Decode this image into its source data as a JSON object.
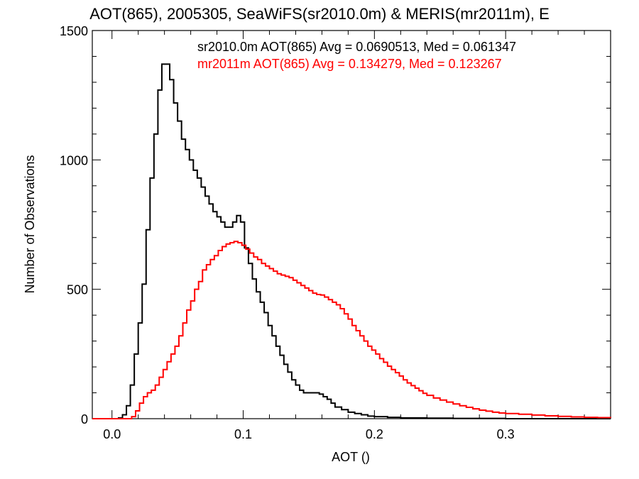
{
  "chart_data": {
    "type": "line",
    "title": "AOT(865), 2005305, SeaWiFS(sr2010.0m) & MERIS(mr2011m), E",
    "xlabel": "AOT ()",
    "ylabel": "Number of Observations",
    "xlim": [
      -0.015,
      0.38
    ],
    "ylim": [
      0,
      1500
    ],
    "x_ticks": [
      "0.0",
      "0.1",
      "0.2",
      "0.3"
    ],
    "y_ticks": [
      "0",
      "500",
      "1000",
      "1500"
    ],
    "legend_placement": "top",
    "series": [
      {
        "name": "sr2010.0m AOT(865) Avg = 0.0690513, Med = 0.061347",
        "color": "#000000",
        "points": [
          [
            -0.015,
            0
          ],
          [
            0.0,
            0
          ],
          [
            0.005,
            3
          ],
          [
            0.008,
            15
          ],
          [
            0.011,
            50
          ],
          [
            0.014,
            130
          ],
          [
            0.017,
            250
          ],
          [
            0.02,
            370
          ],
          [
            0.023,
            520
          ],
          [
            0.026,
            730
          ],
          [
            0.029,
            930
          ],
          [
            0.032,
            1100
          ],
          [
            0.035,
            1270
          ],
          [
            0.038,
            1370
          ],
          [
            0.041,
            1370
          ],
          [
            0.044,
            1310
          ],
          [
            0.047,
            1220
          ],
          [
            0.05,
            1150
          ],
          [
            0.053,
            1080
          ],
          [
            0.056,
            1040
          ],
          [
            0.059,
            1000
          ],
          [
            0.062,
            960
          ],
          [
            0.065,
            930
          ],
          [
            0.068,
            895
          ],
          [
            0.071,
            860
          ],
          [
            0.074,
            830
          ],
          [
            0.077,
            800
          ],
          [
            0.08,
            780
          ],
          [
            0.083,
            760
          ],
          [
            0.086,
            740
          ],
          [
            0.089,
            740
          ],
          [
            0.092,
            760
          ],
          [
            0.095,
            785
          ],
          [
            0.098,
            760
          ],
          [
            0.101,
            660
          ],
          [
            0.104,
            600
          ],
          [
            0.107,
            540
          ],
          [
            0.11,
            490
          ],
          [
            0.113,
            450
          ],
          [
            0.116,
            410
          ],
          [
            0.119,
            360
          ],
          [
            0.122,
            320
          ],
          [
            0.125,
            280
          ],
          [
            0.128,
            245
          ],
          [
            0.131,
            210
          ],
          [
            0.134,
            180
          ],
          [
            0.137,
            150
          ],
          [
            0.14,
            130
          ],
          [
            0.143,
            110
          ],
          [
            0.146,
            100
          ],
          [
            0.149,
            100
          ],
          [
            0.152,
            100
          ],
          [
            0.155,
            100
          ],
          [
            0.158,
            95
          ],
          [
            0.161,
            85
          ],
          [
            0.164,
            75
          ],
          [
            0.167,
            60
          ],
          [
            0.17,
            45
          ],
          [
            0.175,
            35
          ],
          [
            0.18,
            25
          ],
          [
            0.185,
            20
          ],
          [
            0.19,
            15
          ],
          [
            0.195,
            10
          ],
          [
            0.2,
            8
          ],
          [
            0.21,
            5
          ],
          [
            0.22,
            3
          ],
          [
            0.24,
            2
          ],
          [
            0.26,
            1
          ],
          [
            0.3,
            0
          ],
          [
            0.38,
            0
          ]
        ]
      },
      {
        "name": "mr2011m AOT(865) Avg = 0.134279, Med = 0.123267",
        "color": "#ff0000",
        "points": [
          [
            -0.015,
            0
          ],
          [
            0.01,
            0
          ],
          [
            0.015,
            8
          ],
          [
            0.018,
            30
          ],
          [
            0.021,
            60
          ],
          [
            0.024,
            85
          ],
          [
            0.027,
            100
          ],
          [
            0.03,
            110
          ],
          [
            0.033,
            130
          ],
          [
            0.036,
            160
          ],
          [
            0.039,
            190
          ],
          [
            0.042,
            220
          ],
          [
            0.045,
            250
          ],
          [
            0.048,
            280
          ],
          [
            0.051,
            320
          ],
          [
            0.054,
            370
          ],
          [
            0.057,
            420
          ],
          [
            0.06,
            455
          ],
          [
            0.063,
            500
          ],
          [
            0.066,
            530
          ],
          [
            0.069,
            575
          ],
          [
            0.072,
            595
          ],
          [
            0.075,
            615
          ],
          [
            0.078,
            630
          ],
          [
            0.081,
            650
          ],
          [
            0.084,
            665
          ],
          [
            0.087,
            675
          ],
          [
            0.09,
            680
          ],
          [
            0.093,
            685
          ],
          [
            0.096,
            680
          ],
          [
            0.099,
            670
          ],
          [
            0.102,
            655
          ],
          [
            0.105,
            640
          ],
          [
            0.108,
            625
          ],
          [
            0.111,
            615
          ],
          [
            0.114,
            600
          ],
          [
            0.117,
            590
          ],
          [
            0.12,
            580
          ],
          [
            0.123,
            570
          ],
          [
            0.126,
            560
          ],
          [
            0.129,
            555
          ],
          [
            0.132,
            550
          ],
          [
            0.135,
            545
          ],
          [
            0.138,
            535
          ],
          [
            0.141,
            525
          ],
          [
            0.144,
            515
          ],
          [
            0.147,
            505
          ],
          [
            0.15,
            495
          ],
          [
            0.153,
            485
          ],
          [
            0.156,
            480
          ],
          [
            0.159,
            478
          ],
          [
            0.162,
            470
          ],
          [
            0.165,
            460
          ],
          [
            0.168,
            450
          ],
          [
            0.171,
            440
          ],
          [
            0.174,
            425
          ],
          [
            0.177,
            405
          ],
          [
            0.18,
            385
          ],
          [
            0.183,
            360
          ],
          [
            0.186,
            340
          ],
          [
            0.189,
            320
          ],
          [
            0.192,
            300
          ],
          [
            0.195,
            280
          ],
          [
            0.198,
            265
          ],
          [
            0.201,
            250
          ],
          [
            0.204,
            232
          ],
          [
            0.207,
            218
          ],
          [
            0.21,
            203
          ],
          [
            0.213,
            190
          ],
          [
            0.216,
            178
          ],
          [
            0.219,
            165
          ],
          [
            0.222,
            150
          ],
          [
            0.225,
            138
          ],
          [
            0.228,
            128
          ],
          [
            0.231,
            118
          ],
          [
            0.234,
            108
          ],
          [
            0.237,
            98
          ],
          [
            0.24,
            90
          ],
          [
            0.245,
            80
          ],
          [
            0.25,
            72
          ],
          [
            0.255,
            64
          ],
          [
            0.26,
            57
          ],
          [
            0.265,
            50
          ],
          [
            0.27,
            44
          ],
          [
            0.275,
            38
          ],
          [
            0.28,
            33
          ],
          [
            0.285,
            29
          ],
          [
            0.29,
            25
          ],
          [
            0.295,
            22
          ],
          [
            0.3,
            20
          ],
          [
            0.31,
            17
          ],
          [
            0.32,
            14
          ],
          [
            0.33,
            11
          ],
          [
            0.34,
            9
          ],
          [
            0.35,
            7
          ],
          [
            0.36,
            5
          ],
          [
            0.37,
            4
          ],
          [
            0.38,
            3
          ]
        ]
      }
    ]
  }
}
